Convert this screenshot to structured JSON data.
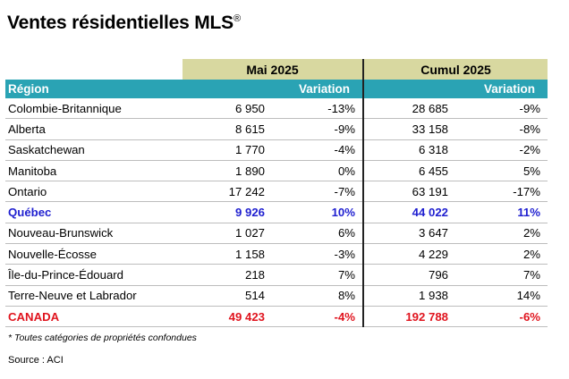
{
  "title": "Ventes résidentielles MLS",
  "title_mark": "®",
  "chart_data": {
    "type": "table",
    "title": "Ventes résidentielles MLS®",
    "period_headers": [
      "Mai 2025",
      "Cumul 2025"
    ],
    "column_headers": {
      "region": "Région",
      "variation": "Variation"
    },
    "rows": [
      {
        "region": "Colombie-Britannique",
        "mai": "6 950",
        "mai_var": "-13%",
        "cumul": "28 685",
        "cumul_var": "-9%",
        "style": "normal"
      },
      {
        "region": "Alberta",
        "mai": "8 615",
        "mai_var": "-9%",
        "cumul": "33 158",
        "cumul_var": "-8%",
        "style": "normal"
      },
      {
        "region": "Saskatchewan",
        "mai": "1 770",
        "mai_var": "-4%",
        "cumul": "6 318",
        "cumul_var": "-2%",
        "style": "normal"
      },
      {
        "region": "Manitoba",
        "mai": "1 890",
        "mai_var": "0%",
        "cumul": "6 455",
        "cumul_var": "5%",
        "style": "normal"
      },
      {
        "region": "Ontario",
        "mai": "17 242",
        "mai_var": "-7%",
        "cumul": "63 191",
        "cumul_var": "-17%",
        "style": "normal"
      },
      {
        "region": "Québec",
        "mai": "9 926",
        "mai_var": "10%",
        "cumul": "44 022",
        "cumul_var": "11%",
        "style": "highlight-blue"
      },
      {
        "region": "Nouveau-Brunswick",
        "mai": "1 027",
        "mai_var": "6%",
        "cumul": "3 647",
        "cumul_var": "2%",
        "style": "normal"
      },
      {
        "region": "Nouvelle-Écosse",
        "mai": "1 158",
        "mai_var": "-3%",
        "cumul": "4 229",
        "cumul_var": "2%",
        "style": "normal"
      },
      {
        "region": "Île-du-Prince-Édouard",
        "mai": "218",
        "mai_var": "7%",
        "cumul": "796",
        "cumul_var": "7%",
        "style": "normal"
      },
      {
        "region": "Terre-Neuve et Labrador",
        "mai": "514",
        "mai_var": "8%",
        "cumul": "1 938",
        "cumul_var": "14%",
        "style": "normal"
      },
      {
        "region": "CANADA",
        "mai": "49 423",
        "mai_var": "-4%",
        "cumul": "192 788",
        "cumul_var": "-6%",
        "style": "highlight-red"
      }
    ],
    "colors": {
      "period_header_bg": "#d8d8a0",
      "column_header_bg": "#2aa3b4",
      "quebec": "#1f1fd0",
      "canada": "#e0141e"
    }
  },
  "footnote": "* Toutes catégories de propriétés confondues",
  "source": "Source : ACI"
}
